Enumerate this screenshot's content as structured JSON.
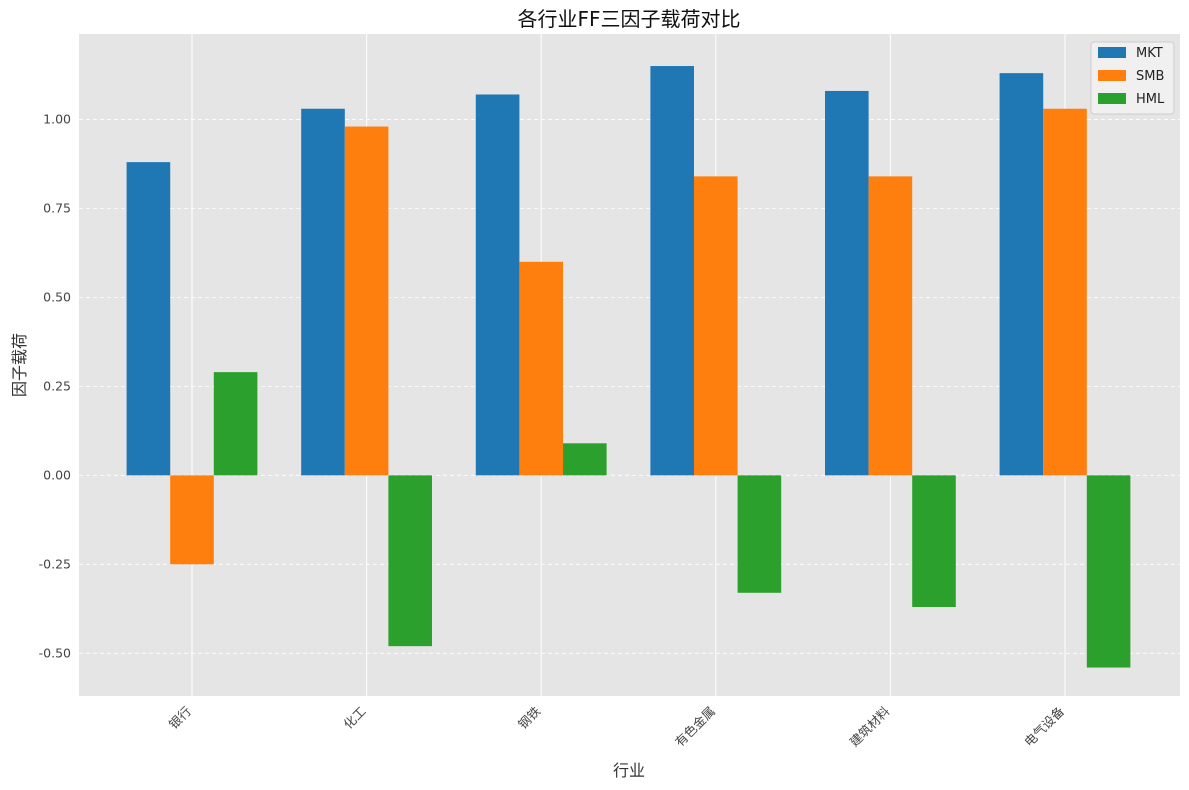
{
  "chart_data": {
    "type": "bar",
    "title": "各行业FF三因子载荷对比",
    "xlabel": "行业",
    "ylabel": "因子载荷",
    "categories": [
      "银行",
      "化工",
      "钢铁",
      "有色金属",
      "建筑材料",
      "电气设备"
    ],
    "series": [
      {
        "name": "MKT",
        "color": "#1f77b4",
        "values": [
          0.88,
          1.03,
          1.07,
          1.15,
          1.08,
          1.13
        ]
      },
      {
        "name": "SMB",
        "color": "#ff7f0e",
        "values": [
          -0.25,
          0.98,
          0.6,
          0.84,
          0.84,
          1.03
        ]
      },
      {
        "name": "HML",
        "color": "#2ca02c",
        "values": [
          0.29,
          -0.48,
          0.09,
          -0.33,
          -0.37,
          -0.54
        ]
      }
    ],
    "ylim": [
      -0.62,
      1.24
    ],
    "yticks": [
      "-0.50",
      "-0.25",
      "0.00",
      "0.25",
      "0.50",
      "0.75",
      "1.00"
    ],
    "grid": true,
    "legend_position": "top-right",
    "background_color": "#e5e5e5"
  }
}
